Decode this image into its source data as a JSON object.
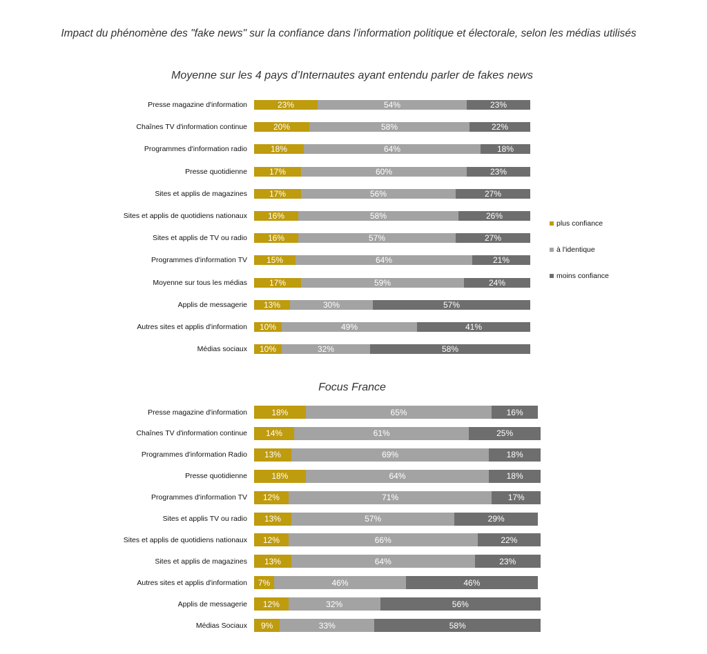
{
  "title": "Impact du phénomène des \"fake news\" sur la confiance dans l'information politique et électorale, selon les médias utilisés",
  "colors": {
    "plus": "#bf9b0e",
    "identique": "#a3a3a3",
    "moins": "#6e6e6e"
  },
  "legend": [
    {
      "label": "plus confiance",
      "color": "#bf9b0e"
    },
    {
      "label": "à l'identique",
      "color": "#a3a3a3"
    },
    {
      "label": "moins confiance",
      "color": "#6e6e6e"
    }
  ],
  "chart_data": [
    {
      "type": "bar",
      "orientation": "horizontal",
      "stacked": true,
      "title": "Moyenne sur les 4 pays d’Internautes ayant entendu parler de fakes news",
      "categories": [
        "Presse magazine d'information",
        "Chaînes TV d'information continue",
        "Programmes d'information radio",
        "Presse quotidienne",
        "Sites et applis de magazines",
        "Sites et applis de quotidiens nationaux",
        "Sites et applis de TV ou radio",
        "Programmes d'information TV",
        "Moyenne sur tous les médias",
        "Applis de messagerie",
        "Autres sites et applis d'information",
        "Médias sociaux"
      ],
      "series": [
        {
          "name": "plus confiance",
          "values": [
            23,
            20,
            18,
            17,
            17,
            16,
            16,
            15,
            17,
            13,
            10,
            10
          ]
        },
        {
          "name": "à l'identique",
          "values": [
            54,
            58,
            64,
            60,
            56,
            58,
            57,
            64,
            59,
            30,
            49,
            32
          ]
        },
        {
          "name": "moins confiance",
          "values": [
            23,
            22,
            18,
            23,
            27,
            26,
            27,
            21,
            24,
            57,
            41,
            58
          ]
        }
      ],
      "xlim": [
        0,
        100
      ],
      "legend_position": "right"
    },
    {
      "type": "bar",
      "orientation": "horizontal",
      "stacked": true,
      "title": "Focus France",
      "categories": [
        "Presse magazine d'information",
        "Chaînes TV  d'information continue",
        "Programmes d'information Radio",
        "Presse quotidienne",
        "Programmes d'information TV",
        "Sites et applis TV ou radio",
        "Sites et applis de quotidiens nationaux",
        "Sites et applis de magazines",
        "Autres sites et applis d'information",
        "Applis de messagerie",
        "Médias Sociaux"
      ],
      "series": [
        {
          "name": "plus confiance",
          "values": [
            18,
            14,
            13,
            18,
            12,
            13,
            12,
            13,
            7,
            12,
            9
          ]
        },
        {
          "name": "à l'identique",
          "values": [
            65,
            61,
            69,
            64,
            71,
            57,
            66,
            64,
            46,
            32,
            33
          ]
        },
        {
          "name": "moins confiance",
          "values": [
            16,
            25,
            18,
            18,
            17,
            29,
            22,
            23,
            46,
            56,
            58
          ]
        }
      ],
      "xlim": [
        0,
        100
      ]
    }
  ]
}
